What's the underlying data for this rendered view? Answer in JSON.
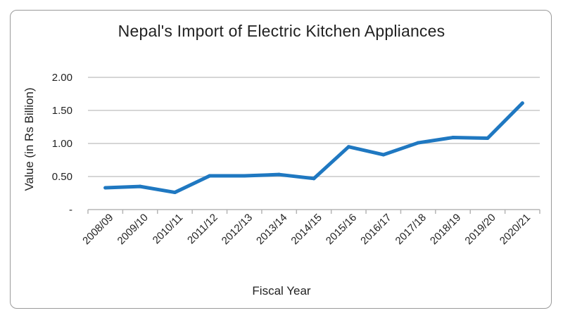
{
  "chart_data": {
    "type": "line",
    "title": "Nepal's Import of Electric Kitchen Appliances",
    "xlabel": "Fiscal Year",
    "ylabel": "Value (in Rs Billion)",
    "categories": [
      "2008/09",
      "2009/10",
      "2010/11",
      "2011/12",
      "2012/13",
      "2013/14",
      "2014/15",
      "2015/16",
      "2016/17",
      "2017/18",
      "2018/19",
      "2019/20",
      "2020/21"
    ],
    "series": [
      {
        "values": [
          0.33,
          0.35,
          0.26,
          0.51,
          0.51,
          0.53,
          0.47,
          0.95,
          0.83,
          1.01,
          1.09,
          1.08,
          1.61
        ]
      }
    ],
    "y_ticks": [
      {
        "value": 2.0,
        "label": "2.00"
      },
      {
        "value": 1.5,
        "label": "1.50"
      },
      {
        "value": 1.0,
        "label": "1.00"
      },
      {
        "value": 0.5,
        "label": "0.50"
      },
      {
        "value": 0.0,
        "label": "-"
      }
    ],
    "ylim": [
      0,
      2
    ],
    "grid": true,
    "line_color": "#1f78c1",
    "grid_color": "#c8c8c8"
  }
}
